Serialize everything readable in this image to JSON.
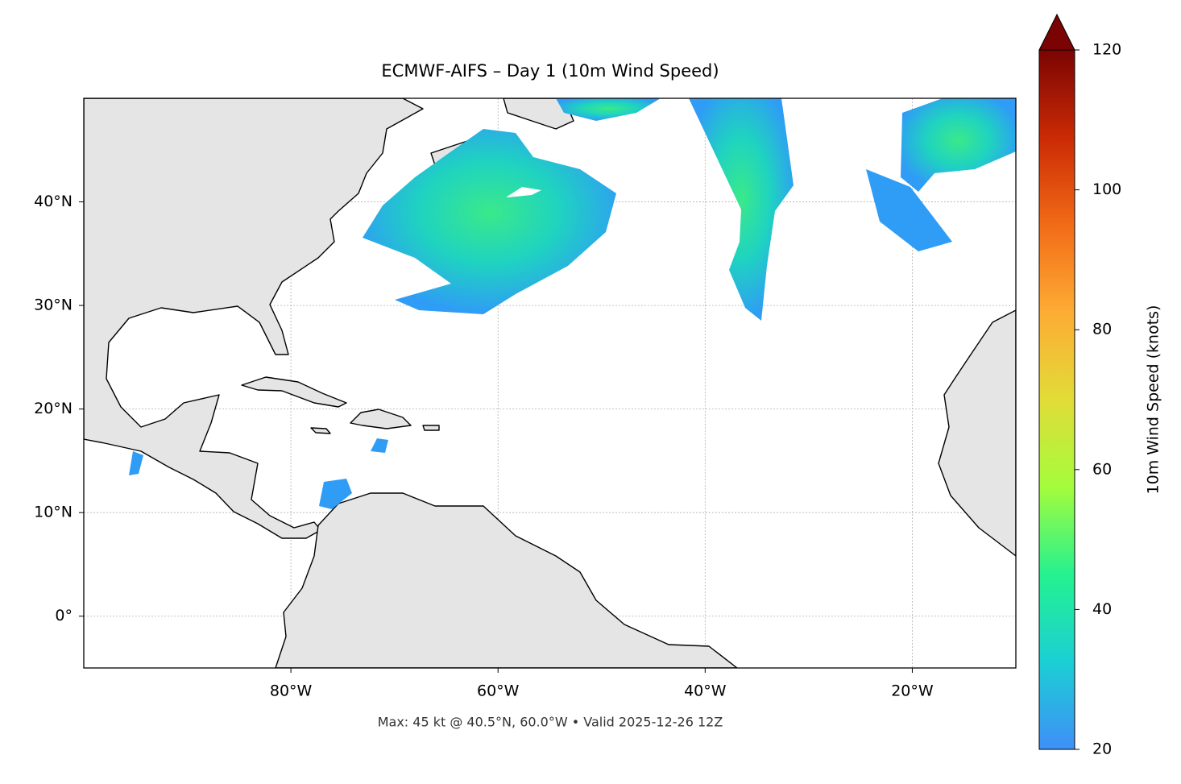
{
  "chart_data": {
    "type": "map",
    "title": "ECMWF-AIFS – Day 1 (10m Wind Speed)",
    "annotation": "Max: 45 kt @ 40.5°N, 60.0°W • Valid 2025-12-26 12Z",
    "xlim": [
      -100,
      -10
    ],
    "ylim": [
      -5,
      50
    ],
    "xticks": [
      {
        "value": -80,
        "label": "80°W"
      },
      {
        "value": -60,
        "label": "60°W"
      },
      {
        "value": -40,
        "label": "40°W"
      },
      {
        "value": -20,
        "label": "20°W"
      }
    ],
    "yticks": [
      {
        "value": 0,
        "label": "0°"
      },
      {
        "value": 10,
        "label": "10°N"
      },
      {
        "value": 20,
        "label": "20°N"
      },
      {
        "value": 30,
        "label": "30°N"
      },
      {
        "value": 40,
        "label": "40°N"
      }
    ],
    "grid": true,
    "colorbar": {
      "label": "10m Wind Speed (knots)",
      "lim": [
        20,
        120
      ],
      "ticks": [
        20,
        40,
        60,
        80,
        100,
        120
      ],
      "colormap": [
        "#3f8ff7",
        "#1bcfd4",
        "#24f28f",
        "#a4fc3c",
        "#e2dc38",
        "#fdac34",
        "#f26b17",
        "#ca2a04",
        "#7a0403"
      ]
    }
  }
}
